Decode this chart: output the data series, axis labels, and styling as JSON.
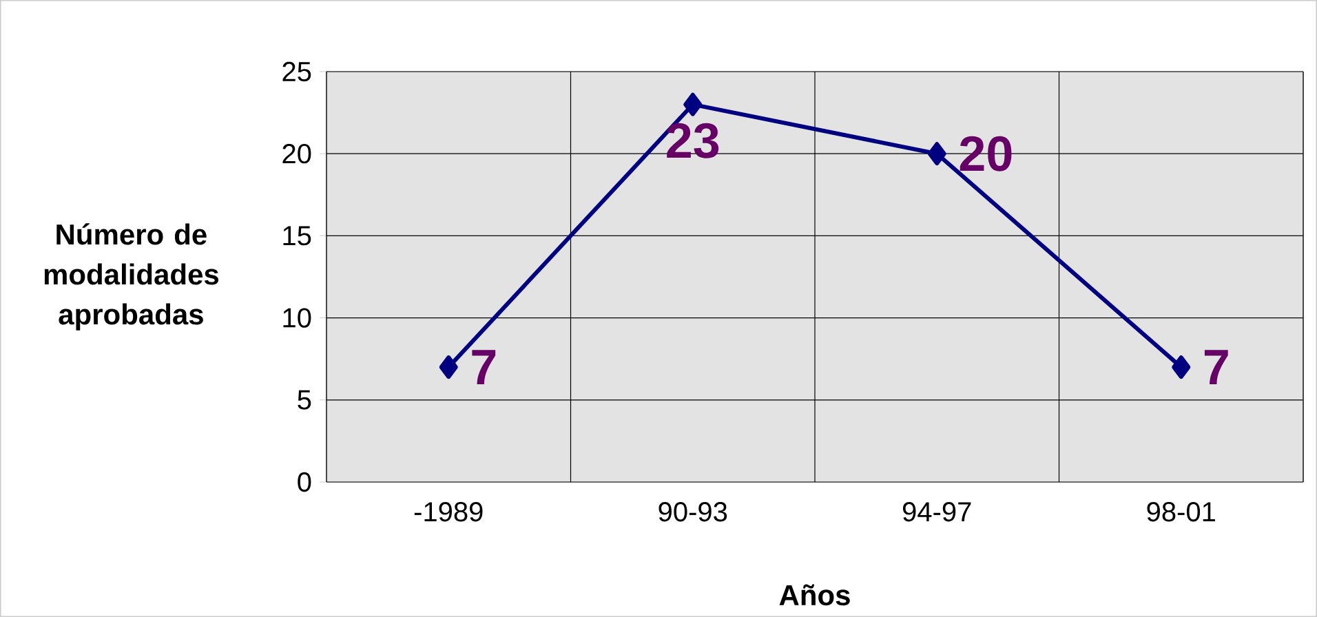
{
  "chart_data": {
    "type": "line",
    "xlabel": "Años",
    "ylabel": "Número de modalidades aprobadas",
    "categories": [
      "-1989",
      "90-93",
      "94-97",
      "98-01"
    ],
    "values": [
      7,
      23,
      20,
      7
    ],
    "color": "#000080",
    "marker": "diamond",
    "line_style": "solid",
    "ylim": [
      0,
      25
    ],
    "yticks": [
      0,
      5,
      10,
      15,
      20,
      25
    ],
    "grid": true,
    "data_labels": true
  }
}
